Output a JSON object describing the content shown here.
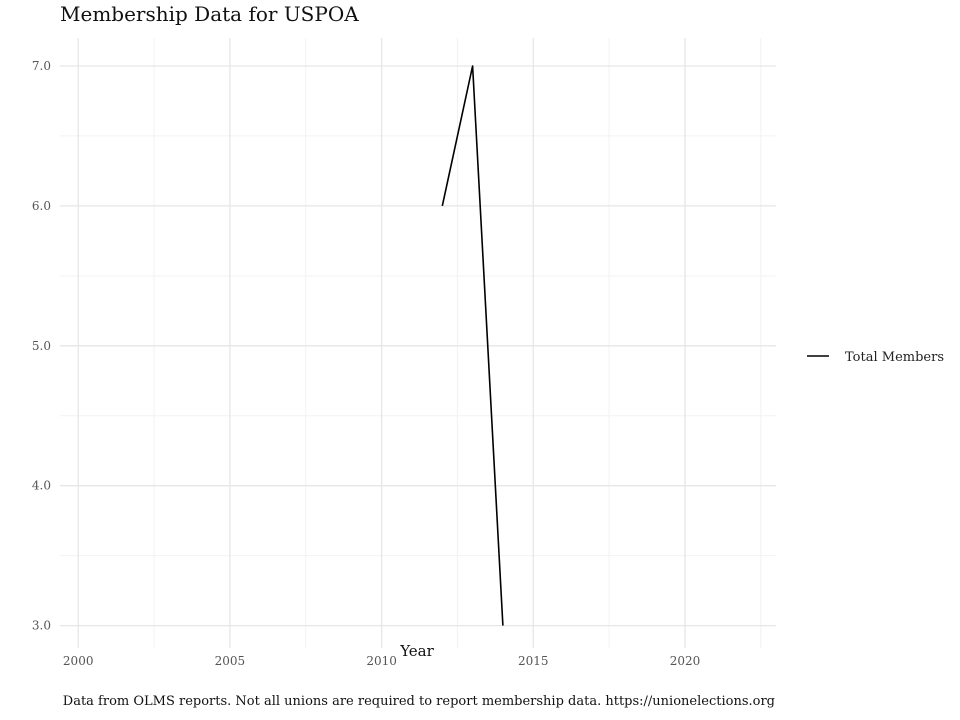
{
  "chart_data": {
    "type": "line",
    "title": "Membership Data for USPOA",
    "xlabel": "Year",
    "ylabel": "",
    "xlim": [
      1999.4,
      2023
    ],
    "ylim": [
      2.84,
      7.2
    ],
    "x_ticks": [
      2000,
      2005,
      2010,
      2015,
      2020
    ],
    "x_tick_labels": [
      "2000",
      "2005",
      "2010",
      "2015",
      "2020"
    ],
    "y_ticks": [
      3,
      4,
      5,
      6,
      7
    ],
    "y_tick_labels": [
      "3.0",
      "4.0",
      "5.0",
      "6.0",
      "7.0"
    ],
    "grid": true,
    "legend": "right",
    "series": [
      {
        "name": "Total Members",
        "color": "#000000",
        "x": [
          2012,
          2013,
          2014
        ],
        "values": [
          6,
          7,
          3
        ]
      }
    ]
  },
  "caption": "Data from OLMS reports. Not all unions are required to report membership data. https://unionelections.org"
}
